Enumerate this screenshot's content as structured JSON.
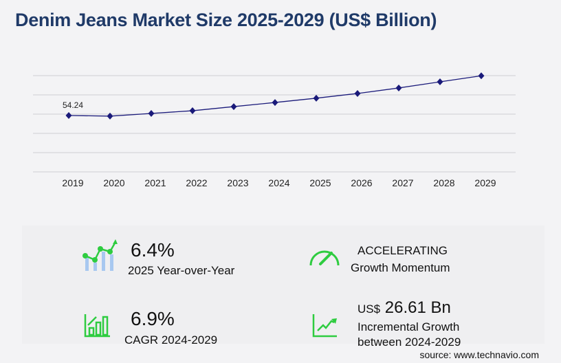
{
  "title": "Denim Jeans Market Size 2025-2029 (US$ Billion)",
  "chart_data": {
    "type": "line",
    "title": "Denim Jeans Market Size 2025-2029 (US$ Billion)",
    "categories": [
      "2019",
      "2020",
      "2021",
      "2022",
      "2023",
      "2024",
      "2025",
      "2026",
      "2027",
      "2028",
      "2029"
    ],
    "series": [
      {
        "values": [
          54.24,
          53.6,
          56.3,
          59.0,
          63.1,
          67.2,
          71.5,
          76.2,
          81.7,
          87.8,
          93.8
        ]
      }
    ],
    "data_labels": [
      {
        "index": 0,
        "text": "54.24"
      }
    ],
    "ylim": [
      -2,
      94
    ],
    "grid": true,
    "color": "#1a1a7a"
  },
  "stats": {
    "yoy_value": "6.4%",
    "yoy_label": "2025 Year-over-Year",
    "momentum_value": "ACCELERATING",
    "momentum_label": "Growth Momentum",
    "cagr_value": "6.9%",
    "cagr_label": "CAGR 2024-2029",
    "incr_prefix": "US$",
    "incr_value": "26.61 Bn",
    "incr_label1": "Incremental Growth",
    "incr_label2": "between 2024-2029"
  },
  "source": "source: www.technavio.com",
  "icon_color": "#2ecc40"
}
